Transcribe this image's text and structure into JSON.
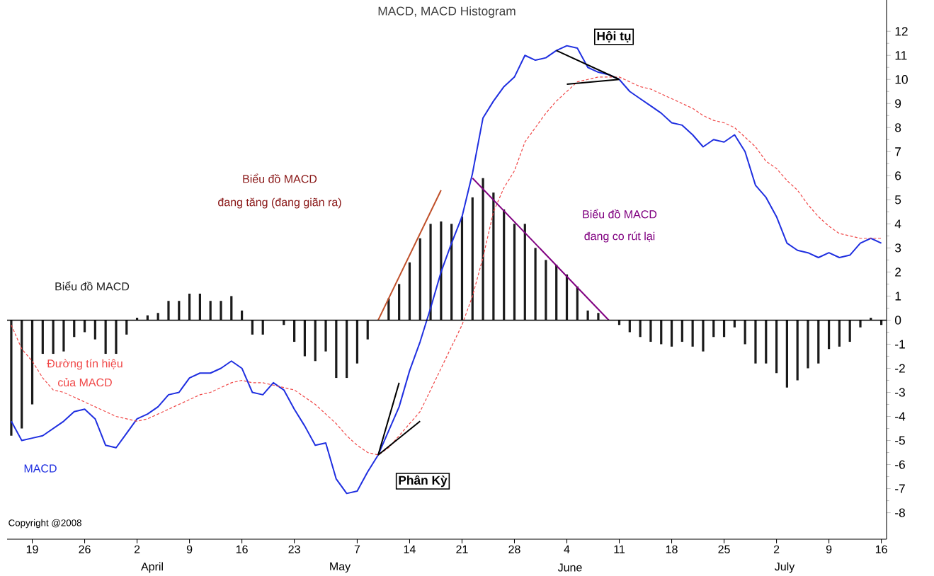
{
  "chart_data": {
    "type": "bar",
    "title": "MACD, MACD Histogram",
    "categories": [
      null,
      null,
      "19",
      null,
      null,
      null,
      null,
      "26",
      null,
      null,
      null,
      null,
      "2",
      null,
      null,
      null,
      null,
      "9",
      null,
      null,
      null,
      null,
      "16",
      null,
      null,
      null,
      null,
      "23",
      null,
      null,
      null,
      null,
      null,
      "7",
      null,
      null,
      null,
      null,
      "14",
      null,
      null,
      null,
      null,
      "21",
      null,
      null,
      null,
      null,
      "28",
      null,
      null,
      null,
      null,
      "4",
      null,
      null,
      null,
      null,
      "11",
      null,
      null,
      null,
      null,
      "18",
      null,
      null,
      null,
      null,
      "25",
      null,
      null,
      null,
      null,
      "2",
      null,
      null,
      null,
      null,
      "9",
      null,
      null,
      null,
      null,
      "16"
    ],
    "ylim": [
      -9.1,
      13.3
    ],
    "yticks": [
      -8,
      -7,
      -6,
      -5,
      -4,
      -3,
      -2,
      -1,
      0,
      1,
      2,
      3,
      4,
      5,
      6,
      7,
      8,
      9,
      10,
      11,
      12
    ],
    "ref_lines": [
      {
        "axis": "y",
        "value": 0,
        "color": "#000000"
      }
    ],
    "series": [
      {
        "color": "#1a1a1a",
        "values": [
          -4.8,
          -4.5,
          -3.5,
          -1.4,
          -1.4,
          -1.3,
          -0.7,
          -0.5,
          -0.8,
          -1.4,
          -1.4,
          -0.6,
          0.1,
          0.2,
          0.3,
          0.8,
          0.8,
          1.1,
          1.1,
          0.8,
          0.8,
          1.0,
          0.4,
          -0.6,
          -0.6,
          0.0,
          -0.2,
          -0.9,
          -1.5,
          -1.7,
          -1.3,
          -2.4,
          -2.4,
          -1.8,
          -0.8,
          0,
          0.9,
          1.5,
          2.4,
          3.4,
          4.0,
          4.1,
          4.0,
          4.3,
          5.1,
          5.9,
          5.3,
          4.6,
          4.0,
          4.0,
          3.0,
          2.5,
          2.3,
          1.9,
          1.4,
          0.4,
          0.3,
          0,
          -0.2,
          -0.5,
          -0.7,
          -0.9,
          -1.0,
          -1.1,
          -0.9,
          -1.1,
          -1.3,
          -0.7,
          -0.7,
          -0.3,
          -1.0,
          -1.8,
          -1.8,
          -2.2,
          -2.8,
          -2.5,
          -2.0,
          -1.8,
          -1.2,
          -1.1,
          -0.9,
          -0.3,
          0.1,
          -0.2
        ]
      },
      {
        "type": "line",
        "color": "#1f2fe0",
        "line_style": "solid",
        "values": [
          -4.2,
          -5.0,
          -4.9,
          -4.8,
          -4.5,
          -4.2,
          -3.8,
          -3.7,
          -4.1,
          -5.2,
          -5.3,
          -4.7,
          -4.1,
          -3.9,
          -3.6,
          -3.1,
          -3.0,
          -2.4,
          -2.2,
          -2.2,
          -2.0,
          -1.7,
          -2.0,
          -3.0,
          -3.1,
          -2.6,
          -2.9,
          -3.7,
          -4.4,
          -5.2,
          -5.1,
          -6.6,
          -7.2,
          -7.1,
          -6.3,
          -5.6,
          -4.6,
          -3.6,
          -2.1,
          -0.9,
          0.5,
          2.0,
          3.2,
          4.3,
          6.1,
          8.4,
          9.1,
          9.7,
          10.1,
          11.0,
          10.8,
          10.9,
          11.2,
          11.4,
          11.3,
          10.5,
          10.3,
          10.2,
          10.0,
          9.5,
          9.2,
          8.9,
          8.6,
          8.2,
          8.1,
          7.7,
          7.2,
          7.5,
          7.4,
          7.7,
          7.0,
          5.6,
          5.1,
          4.3,
          3.2,
          2.9,
          2.8,
          2.6,
          2.8,
          2.6,
          2.7,
          3.2,
          3.4,
          3.2
        ]
      },
      {
        "type": "line",
        "color": "#f04848",
        "line_style": "dashed",
        "values": [
          -0.2,
          -1.2,
          -1.7,
          -2.4,
          -2.9,
          -3.0,
          -3.2,
          -3.4,
          -3.6,
          -3.8,
          -4.0,
          -4.1,
          -4.2,
          -4.1,
          -3.9,
          -3.7,
          -3.5,
          -3.3,
          -3.1,
          -3.0,
          -2.8,
          -2.6,
          -2.5,
          -2.6,
          -2.6,
          -2.7,
          -2.8,
          -2.9,
          -3.2,
          -3.5,
          -3.9,
          -4.3,
          -4.8,
          -5.2,
          -5.5,
          -5.6,
          -5.3,
          -4.8,
          -4.3,
          -3.8,
          -2.9,
          -2.0,
          -1.1,
          -0.2,
          1.0,
          2.6,
          4.5,
          5.5,
          6.2,
          7.4,
          8.0,
          8.6,
          9.1,
          9.5,
          9.9,
          10.0,
          10.1,
          10.1,
          10.1,
          9.9,
          9.7,
          9.6,
          9.4,
          9.2,
          9.0,
          8.8,
          8.5,
          8.3,
          8.2,
          8.0,
          7.6,
          7.2,
          6.6,
          6.3,
          5.8,
          5.4,
          4.8,
          4.3,
          3.9,
          3.6,
          3.5,
          3.4,
          3.4,
          3.4
        ]
      },
      {
        "type": "line",
        "color": "#c0502a",
        "line_style": "solid",
        "values": [
          null,
          null,
          null,
          null,
          null,
          null,
          null,
          null,
          null,
          null,
          null,
          null,
          null,
          null,
          null,
          null,
          null,
          null,
          null,
          null,
          null,
          null,
          null,
          null,
          null,
          null,
          null,
          null,
          null,
          null,
          null,
          null,
          null,
          null,
          null,
          0,
          null,
          null,
          null,
          null,
          null,
          5.4,
          null,
          null,
          null,
          null,
          null,
          null,
          null,
          null,
          null,
          null,
          null,
          null,
          null,
          null,
          null,
          null,
          null,
          null,
          null,
          null,
          null,
          null,
          null,
          null,
          null,
          null,
          null,
          null,
          null,
          null,
          null,
          null,
          null,
          null,
          null,
          null,
          null,
          null,
          null,
          null,
          null,
          null
        ]
      },
      {
        "type": "line",
        "color": "#800080",
        "line_style": "solid",
        "values": [
          null,
          null,
          null,
          null,
          null,
          null,
          null,
          null,
          null,
          null,
          null,
          null,
          null,
          null,
          null,
          null,
          null,
          null,
          null,
          null,
          null,
          null,
          null,
          null,
          null,
          null,
          null,
          null,
          null,
          null,
          null,
          null,
          null,
          null,
          null,
          null,
          null,
          null,
          null,
          null,
          null,
          null,
          null,
          null,
          5.9,
          null,
          null,
          null,
          null,
          null,
          null,
          null,
          null,
          null,
          null,
          null,
          null,
          0,
          null,
          null,
          null,
          null,
          null,
          null,
          null,
          null,
          null,
          null,
          null,
          null,
          null,
          null,
          null,
          null,
          null,
          null,
          null,
          null,
          null,
          null,
          null,
          null,
          null,
          null
        ]
      },
      {
        "type": "line",
        "color": "#000000",
        "line_style": "solid",
        "values": [
          null,
          null,
          null,
          null,
          null,
          null,
          null,
          null,
          null,
          null,
          null,
          null,
          null,
          null,
          null,
          null,
          null,
          null,
          null,
          null,
          null,
          null,
          null,
          null,
          null,
          null,
          null,
          null,
          null,
          null,
          null,
          null,
          null,
          null,
          null,
          -5.6,
          null,
          -2.6,
          null,
          null,
          null,
          null,
          null,
          null,
          null,
          null,
          null,
          null,
          null,
          null,
          null,
          null,
          null,
          null,
          null,
          null,
          null,
          null,
          null,
          null,
          null,
          null,
          null,
          null,
          null,
          null,
          null,
          null,
          null,
          null,
          null,
          null,
          null,
          null,
          null,
          null,
          null,
          null,
          null,
          null,
          null,
          null,
          null,
          null
        ]
      },
      {
        "type": "line",
        "color": "#000000",
        "line_style": "solid",
        "values": [
          null,
          null,
          null,
          null,
          null,
          null,
          null,
          null,
          null,
          null,
          null,
          null,
          null,
          null,
          null,
          null,
          null,
          null,
          null,
          null,
          null,
          null,
          null,
          null,
          null,
          null,
          null,
          null,
          null,
          null,
          null,
          null,
          null,
          null,
          null,
          -5.6,
          null,
          null,
          null,
          -4.2,
          null,
          null,
          null,
          null,
          null,
          null,
          null,
          null,
          null,
          null,
          null,
          null,
          null,
          null,
          null,
          null,
          null,
          null,
          null,
          null,
          null,
          null,
          null,
          null,
          null,
          null,
          null,
          null,
          null,
          null,
          null,
          null,
          null,
          null,
          null,
          null,
          null,
          null,
          null,
          null,
          null,
          null,
          null,
          null
        ]
      },
      {
        "type": "line",
        "color": "#000000",
        "line_style": "solid",
        "values": [
          null,
          null,
          null,
          null,
          null,
          null,
          null,
          null,
          null,
          null,
          null,
          null,
          null,
          null,
          null,
          null,
          null,
          null,
          null,
          null,
          null,
          null,
          null,
          null,
          null,
          null,
          null,
          null,
          null,
          null,
          null,
          null,
          null,
          null,
          null,
          null,
          null,
          null,
          null,
          null,
          null,
          null,
          null,
          null,
          null,
          null,
          null,
          null,
          null,
          null,
          null,
          null,
          11.2,
          null,
          null,
          null,
          null,
          null,
          10.0,
          null,
          null,
          null,
          null,
          null,
          null,
          null,
          null,
          null,
          null,
          null,
          null,
          null,
          null,
          null,
          null,
          null,
          null,
          null,
          null,
          null,
          null,
          null,
          null,
          null
        ]
      },
      {
        "type": "line",
        "color": "#000000",
        "line_style": "solid",
        "values": [
          null,
          null,
          null,
          null,
          null,
          null,
          null,
          null,
          null,
          null,
          null,
          null,
          null,
          null,
          null,
          null,
          null,
          null,
          null,
          null,
          null,
          null,
          null,
          null,
          null,
          null,
          null,
          null,
          null,
          null,
          null,
          null,
          null,
          null,
          null,
          null,
          null,
          null,
          null,
          null,
          null,
          null,
          null,
          null,
          null,
          null,
          null,
          null,
          null,
          null,
          null,
          null,
          null,
          9.8,
          null,
          null,
          null,
          null,
          10.0,
          null,
          null,
          null,
          null,
          null,
          null,
          null,
          null,
          null,
          null,
          null,
          null,
          null,
          null,
          null,
          null,
          null,
          null,
          null,
          null,
          null,
          null,
          null,
          null,
          null
        ]
      }
    ],
    "annotations": [
      "Biểu đồ MACD",
      "Đường tín hiệu",
      "của MACD",
      "MACD",
      "Biểu đồ MACD",
      "đang tăng (đang giãn ra)",
      "Biểu đồ MACD",
      "đang co rút lại",
      "Phân Kỳ",
      "Hội tụ",
      "Copyright @2008",
      "April",
      "May",
      "June",
      "July"
    ]
  }
}
